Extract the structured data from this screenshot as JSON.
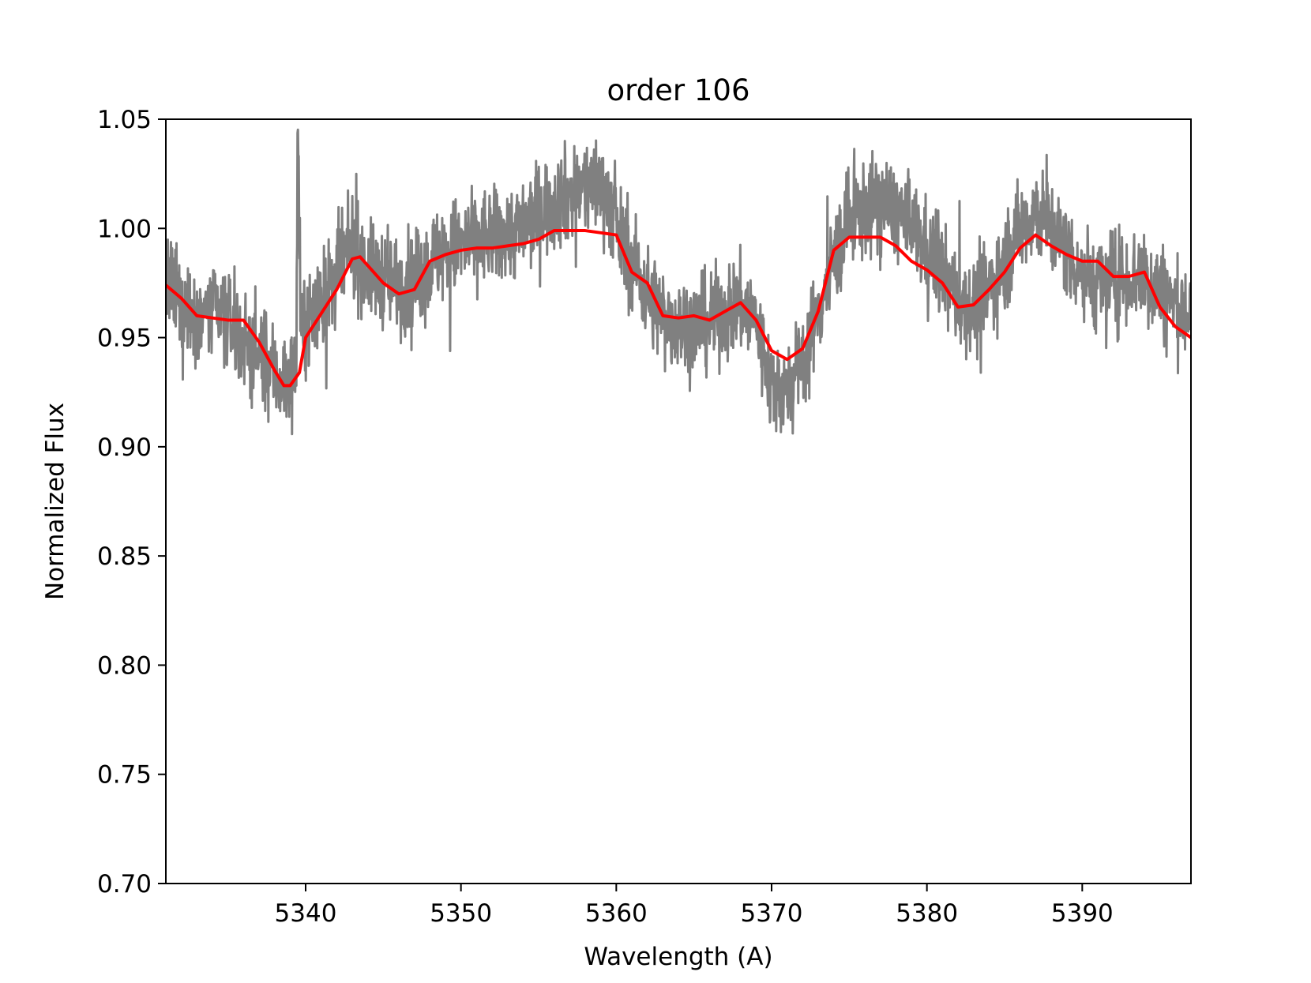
{
  "chart_data": {
    "type": "line",
    "title": "order 106",
    "xlabel": "Wavelength (A)",
    "ylabel": "Normalized Flux",
    "xlim": [
      5331,
      5397
    ],
    "ylim": [
      0.7,
      1.05
    ],
    "x_ticks": [
      5340,
      5350,
      5360,
      5370,
      5380,
      5390
    ],
    "x_tick_labels": [
      "5340",
      "5350",
      "5360",
      "5370",
      "5380",
      "5390"
    ],
    "y_ticks": [
      0.7,
      0.75,
      0.8,
      0.85,
      0.9,
      0.95,
      1.0,
      1.05
    ],
    "y_tick_labels": [
      "0.70",
      "0.75",
      "0.80",
      "0.85",
      "0.90",
      "0.95",
      "1.00",
      "1.05"
    ],
    "grid": false,
    "legend": "none",
    "series": [
      {
        "color": "#808080",
        "style": "noisy observed spectrum",
        "x": [
          5331,
          5332,
          5333,
          5334,
          5335,
          5336,
          5337,
          5338,
          5338.5,
          5339,
          5339.4,
          5339.5,
          5339.7,
          5340,
          5341,
          5342,
          5343,
          5344,
          5345,
          5346,
          5347,
          5348,
          5349,
          5350,
          5351,
          5352,
          5353,
          5354,
          5355,
          5356,
          5357,
          5358,
          5358.5,
          5359,
          5359.5,
          5360,
          5361,
          5362,
          5363,
          5364,
          5365,
          5366,
          5367,
          5368,
          5369,
          5370,
          5371,
          5372,
          5373,
          5374,
          5375,
          5376,
          5377,
          5378,
          5379,
          5380,
          5381,
          5382,
          5383,
          5384,
          5385,
          5386,
          5387,
          5388,
          5389,
          5390,
          5391,
          5392,
          5393,
          5394,
          5395,
          5396,
          5397
        ],
        "y": [
          0.975,
          0.966,
          0.96,
          0.962,
          0.958,
          0.949,
          0.942,
          0.934,
          0.93,
          0.932,
          0.94,
          1.05,
          0.945,
          0.958,
          0.966,
          0.978,
          0.992,
          0.98,
          0.978,
          0.974,
          0.976,
          0.984,
          0.99,
          0.992,
          0.995,
          0.996,
          0.998,
          1.0,
          1.008,
          1.012,
          1.016,
          1.018,
          1.02,
          1.02,
          1.014,
          1.0,
          0.985,
          0.97,
          0.96,
          0.956,
          0.955,
          0.957,
          0.962,
          0.965,
          0.958,
          0.928,
          0.925,
          0.938,
          0.962,
          0.985,
          1.005,
          1.008,
          1.012,
          1.008,
          1.0,
          0.99,
          0.98,
          0.967,
          0.963,
          0.972,
          0.985,
          1.0,
          1.008,
          1.0,
          0.99,
          0.98,
          0.975,
          0.976,
          0.978,
          0.978,
          0.972,
          0.965,
          0.96
        ]
      },
      {
        "color": "#ff0000",
        "style": "smoothed model fit",
        "x": [
          5331,
          5332,
          5333,
          5334,
          5335,
          5336,
          5337,
          5338,
          5338.6,
          5339,
          5339.6,
          5340,
          5341,
          5342,
          5343,
          5343.5,
          5344,
          5345,
          5346,
          5347,
          5348,
          5349,
          5350,
          5351,
          5352,
          5353,
          5354,
          5355,
          5356,
          5357,
          5358,
          5359,
          5360,
          5361,
          5362,
          5363,
          5364,
          5365,
          5366,
          5367,
          5368,
          5369,
          5370,
          5371,
          5372,
          5373,
          5374,
          5375,
          5376,
          5377,
          5378,
          5379,
          5380,
          5381,
          5382,
          5383,
          5384,
          5385,
          5386,
          5387,
          5388,
          5389,
          5390,
          5391,
          5392,
          5393,
          5394,
          5395,
          5396,
          5397
        ],
        "y": [
          0.974,
          0.968,
          0.96,
          0.959,
          0.958,
          0.958,
          0.948,
          0.935,
          0.928,
          0.928,
          0.934,
          0.95,
          0.961,
          0.972,
          0.986,
          0.987,
          0.983,
          0.975,
          0.97,
          0.972,
          0.985,
          0.988,
          0.99,
          0.991,
          0.991,
          0.992,
          0.993,
          0.995,
          0.999,
          0.999,
          0.999,
          0.998,
          0.997,
          0.98,
          0.975,
          0.96,
          0.959,
          0.96,
          0.958,
          0.962,
          0.966,
          0.958,
          0.944,
          0.94,
          0.945,
          0.962,
          0.99,
          0.996,
          0.996,
          0.996,
          0.992,
          0.985,
          0.981,
          0.975,
          0.964,
          0.965,
          0.972,
          0.98,
          0.991,
          0.997,
          0.992,
          0.988,
          0.985,
          0.985,
          0.978,
          0.978,
          0.98,
          0.964,
          0.955,
          0.95
        ]
      }
    ]
  }
}
